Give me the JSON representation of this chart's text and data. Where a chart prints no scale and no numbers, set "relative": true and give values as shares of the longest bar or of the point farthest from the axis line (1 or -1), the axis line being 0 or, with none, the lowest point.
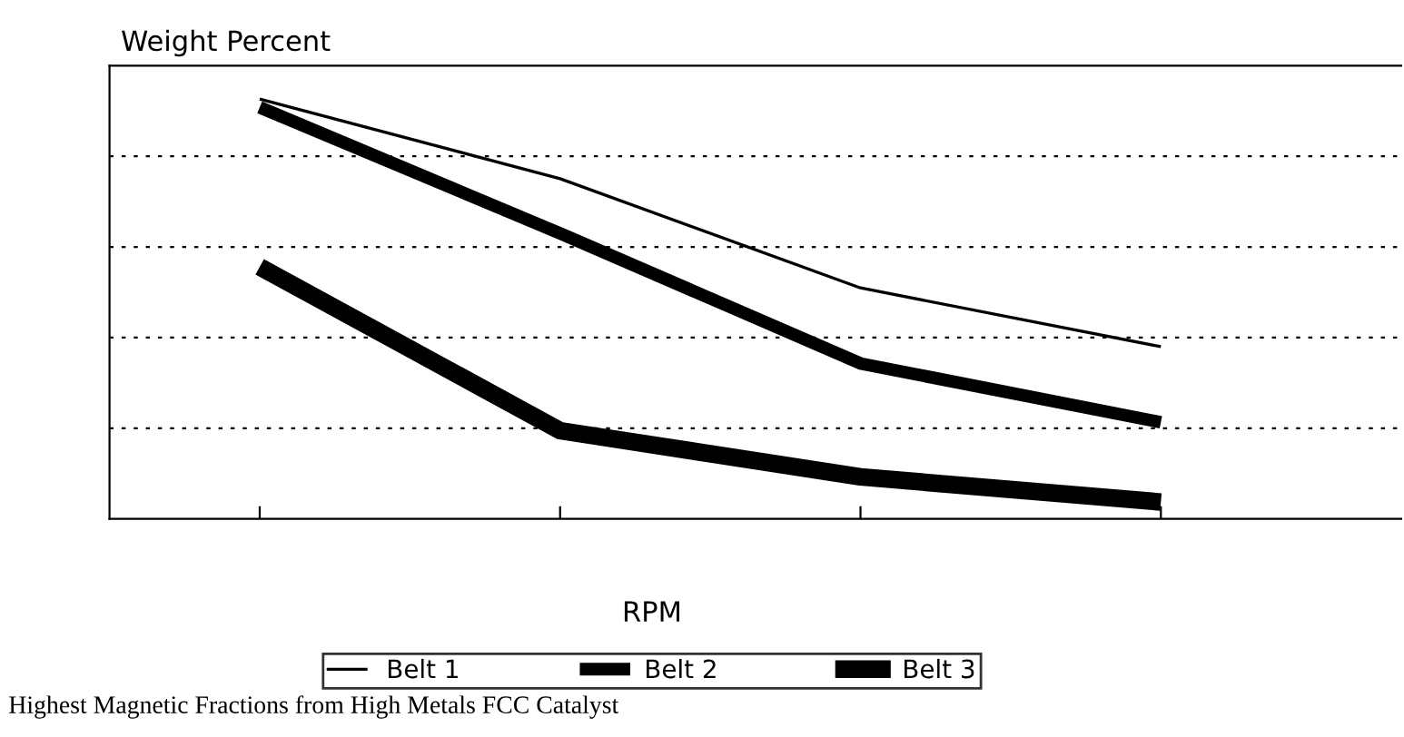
{
  "chart_data": {
    "type": "line",
    "relative": true,
    "ylabel": "Weight Percent",
    "xlabel": "RPM",
    "categories": [
      null,
      null,
      null,
      null
    ],
    "grid": "y",
    "legend": "bottom",
    "marker": "none",
    "line_style": "solid",
    "series": [
      {
        "name": "Belt 1",
        "color": "#000000",
        "values": [
          1,
          0.81,
          0.55,
          0.41
        ]
      },
      {
        "name": "Belt 2",
        "color": "#000000",
        "values": [
          0.98,
          0.68,
          0.37,
          0.23
        ]
      },
      {
        "name": "Belt 3",
        "color": "#000000",
        "values": [
          0.6,
          0.21,
          0.1,
          0.04
        ]
      }
    ],
    "annotations": [
      "Highest Magnetic Fractions from High Metals FCC Catalyst"
    ]
  }
}
